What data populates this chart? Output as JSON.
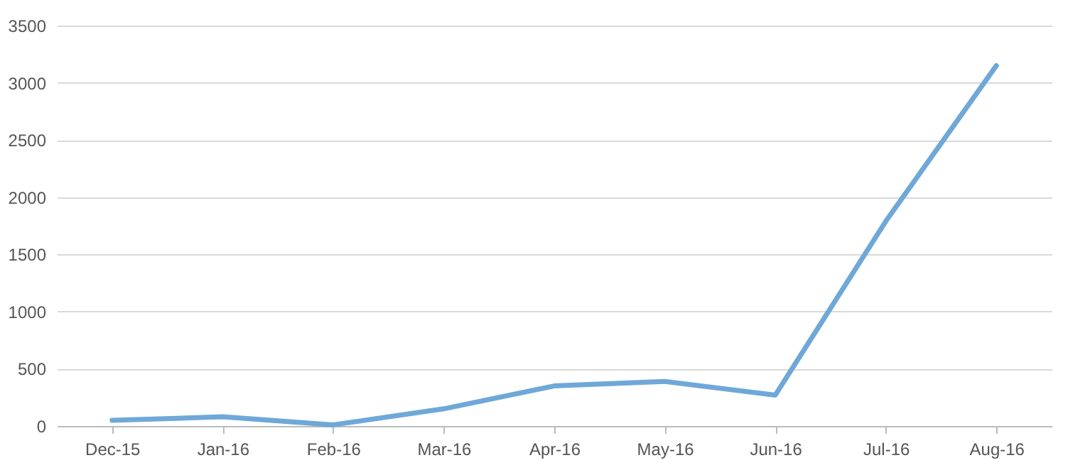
{
  "chart_data": {
    "type": "line",
    "categories": [
      "Dec-15",
      "Jan-16",
      "Feb-16",
      "Mar-16",
      "Apr-16",
      "May-16",
      "Jun-16",
      "Jul-16",
      "Aug-16"
    ],
    "series": [
      {
        "color": "#6fa8d8",
        "values": [
          50,
          80,
          10,
          150,
          350,
          390,
          270,
          1790,
          3150
        ]
      }
    ],
    "ylim": [
      0,
      3500
    ],
    "yticks": [
      0,
      500,
      1000,
      1500,
      2000,
      2500,
      3000,
      3500
    ],
    "grid": "y",
    "legend": false,
    "marker": "none",
    "line_style": "solid"
  }
}
